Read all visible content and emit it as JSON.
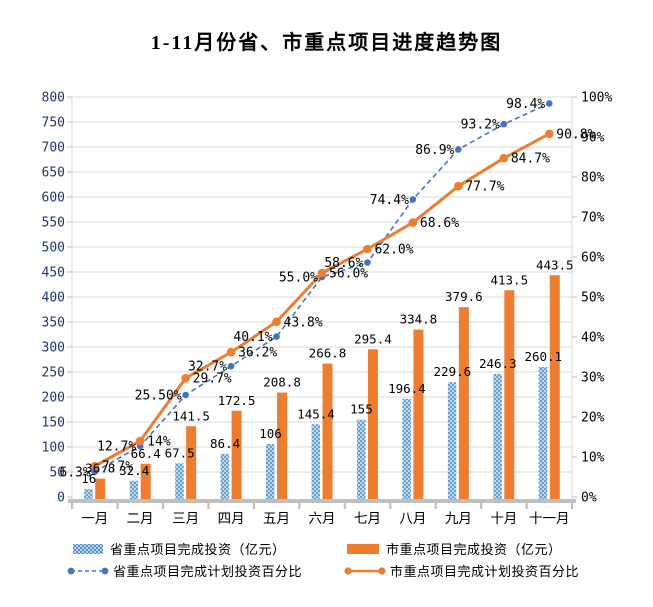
{
  "chart_data": {
    "type": "bar+line combo",
    "title": "1-11月份省、市重点项目进度趋势图",
    "categories": [
      "一月",
      "二月",
      "三月",
      "四月",
      "五月",
      "六月",
      "七月",
      "八月",
      "九月",
      "十月",
      "十一月"
    ],
    "series": [
      {
        "name": "省重点项目完成投资（亿元）",
        "kind": "bar",
        "axis": "left",
        "values": [
          16,
          32.4,
          67.5,
          86.4,
          106,
          145.4,
          155,
          196.4,
          229.6,
          246.3,
          260.1
        ],
        "labels": [
          "16",
          "32.4",
          "67.5",
          "86.4",
          "106",
          "145.4",
          "155",
          "196.4",
          "229.6",
          "246.3",
          "260.1"
        ]
      },
      {
        "name": "市重点项目完成投资（亿元）",
        "kind": "bar",
        "axis": "left",
        "values": [
          36.8,
          66.4,
          141.5,
          172.5,
          208.8,
          266.8,
          295.4,
          334.8,
          379.6,
          413.5,
          443.5
        ],
        "labels": [
          "36.8",
          "66.4",
          "141.5",
          "172.5",
          "208.8",
          "266.8",
          "295.4",
          "334.8",
          "379.6",
          "413.5",
          "443.5"
        ]
      },
      {
        "name": "省重点项目完成计划投资百分比",
        "kind": "line",
        "style": "dashed",
        "axis": "right",
        "values": [
          6.3,
          12.7,
          25.5,
          32.7,
          40.1,
          55.0,
          58.6,
          74.4,
          86.9,
          93.2,
          98.4
        ],
        "labels": [
          "6.3%",
          "12.7%",
          "25.50%",
          "32.7%",
          "40.1%",
          "55.0%",
          "58.6%",
          "74.4%",
          "86.9%",
          "93.2%",
          "98.4%"
        ]
      },
      {
        "name": "市重点项目完成计划投资百分比",
        "kind": "line",
        "style": "solid",
        "axis": "right",
        "values": [
          7.7,
          14,
          29.7,
          36.2,
          43.8,
          56.0,
          62.0,
          68.6,
          77.7,
          84.7,
          90.8
        ],
        "labels": [
          "7.7%",
          "14%",
          "29.7%",
          "36.2%",
          "43.8%",
          "56.0%",
          "62.0%",
          "68.6%",
          "77.7%",
          "84.7%",
          "90.8%"
        ]
      }
    ],
    "left_axis": {
      "min": 0,
      "max": 800,
      "step": 50,
      "ticks": [
        "0",
        "50",
        "100",
        "150",
        "200",
        "250",
        "300",
        "350",
        "400",
        "450",
        "500",
        "550",
        "600",
        "650",
        "700",
        "750",
        "800"
      ]
    },
    "right_axis": {
      "min": 0,
      "max": 100,
      "step": 10,
      "ticks": [
        "0%",
        "10%",
        "20%",
        "30%",
        "40%",
        "50%",
        "60%",
        "70%",
        "80%",
        "90%",
        "100%"
      ]
    },
    "grid": true,
    "legend_position": "bottom"
  },
  "colors": {
    "province_bar_fill": "#BDD7EE",
    "province_bar_dot": "#2E75B6",
    "city_bar": "#ED7D31",
    "province_line": "#4472C4",
    "city_line": "#ED7D31",
    "left_axis_text": "#1F3864",
    "right_axis_text": "#000000",
    "month_text": "#000000",
    "data_label_text": "#000000",
    "grid_line": "#D9D9D9",
    "plot_border": "#D3DBE7",
    "axis_band": "#BFBFBF"
  }
}
